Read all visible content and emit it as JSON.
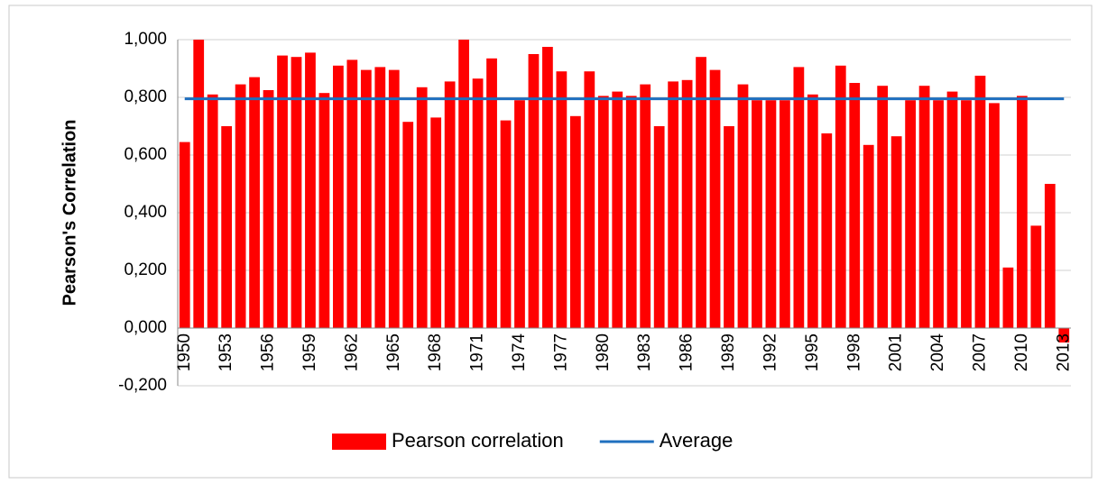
{
  "chart_data": {
    "type": "bar",
    "y_label": "Pearson's Correlation",
    "categories": [
      "1950",
      null,
      null,
      "1953",
      null,
      null,
      "1956",
      null,
      null,
      "1959",
      null,
      null,
      "1962",
      null,
      null,
      "1965",
      null,
      null,
      "1968",
      null,
      null,
      "1971",
      null,
      null,
      "1974",
      null,
      null,
      "1977",
      null,
      null,
      "1980",
      null,
      null,
      "1983",
      null,
      null,
      "1986",
      null,
      null,
      "1989",
      null,
      null,
      "1992",
      null,
      null,
      "1995",
      null,
      null,
      "1998",
      null,
      null,
      "2001",
      null,
      null,
      "2004",
      null,
      null,
      "2007",
      null,
      null,
      "2010",
      null,
      null,
      "2013"
    ],
    "series": [
      {
        "name": "Pearson correlation",
        "color": "#ff0000",
        "type": "bar",
        "values": [
          0.645,
          1.0,
          0.81,
          0.7,
          0.845,
          0.87,
          0.825,
          0.945,
          0.94,
          0.955,
          0.815,
          0.91,
          0.93,
          0.895,
          0.905,
          0.895,
          0.715,
          0.835,
          0.73,
          0.855,
          1.0,
          0.865,
          0.935,
          0.72,
          0.79,
          0.95,
          0.975,
          0.89,
          0.735,
          0.89,
          0.805,
          0.82,
          0.805,
          0.845,
          0.7,
          0.855,
          0.86,
          0.94,
          0.895,
          0.7,
          0.845,
          0.79,
          0.79,
          0.79,
          0.905,
          0.81,
          0.675,
          0.91,
          0.85,
          0.635,
          0.84,
          0.665,
          0.79,
          0.84,
          0.79,
          0.82,
          0.79,
          0.875,
          0.78,
          0.21,
          0.805,
          0.355,
          0.5,
          -0.05
        ]
      },
      {
        "name": "Average",
        "color": "#1f6fbf",
        "type": "line",
        "values": [
          0.795,
          0.795,
          0.795,
          0.795,
          0.795,
          0.795,
          0.795,
          0.795,
          0.795,
          0.795,
          0.795,
          0.795,
          0.795,
          0.795,
          0.795,
          0.795,
          0.795,
          0.795,
          0.795,
          0.795,
          0.795,
          0.795,
          0.795,
          0.795,
          0.795,
          0.795,
          0.795,
          0.795,
          0.795,
          0.795,
          0.795,
          0.795,
          0.795,
          0.795,
          0.795,
          0.795,
          0.795,
          0.795,
          0.795,
          0.795,
          0.795,
          0.795,
          0.795,
          0.795,
          0.795,
          0.795,
          0.795,
          0.795,
          0.795,
          0.795,
          0.795,
          0.795,
          0.795,
          0.795,
          0.795,
          0.795,
          0.795,
          0.795,
          0.795,
          0.795,
          0.795,
          0.795,
          0.795,
          0.795
        ]
      }
    ],
    "ylim": [
      -0.2,
      1.0
    ],
    "yticks": [
      {
        "value": -0.2,
        "label": "-0,200"
      },
      {
        "value": 0,
        "label": "0,000"
      },
      {
        "value": 0.2,
        "label": "0,200"
      },
      {
        "value": 0.4,
        "label": "0,400"
      },
      {
        "value": 0.6,
        "label": "0,600"
      },
      {
        "value": 0.8,
        "label": "0,800"
      },
      {
        "value": 1.0,
        "label": "1,000"
      }
    ],
    "grid": true,
    "legend": "bottom"
  }
}
